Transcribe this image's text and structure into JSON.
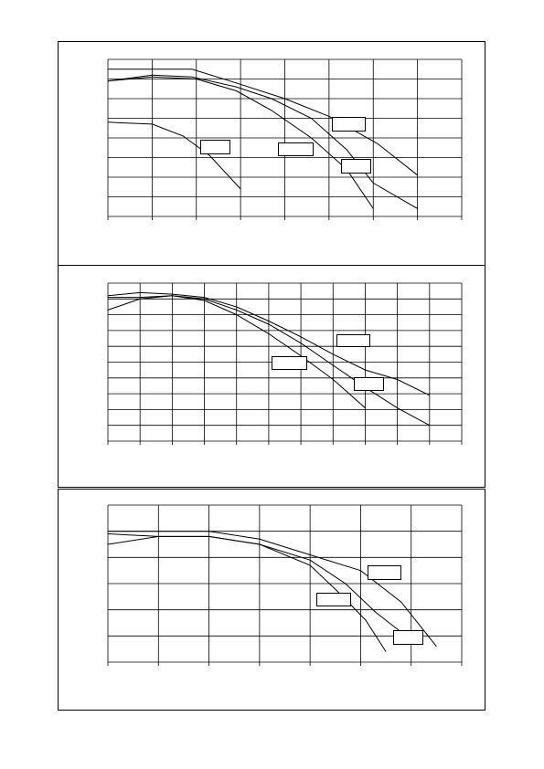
{
  "chart_data": [
    {
      "type": "line",
      "xlim": [
        0,
        8
      ],
      "ylim": [
        0,
        8
      ],
      "xticks": [
        0,
        1,
        2,
        3,
        4,
        5,
        6,
        7,
        8
      ],
      "yticks": [
        0,
        1,
        2,
        3,
        4,
        5,
        6,
        7,
        8
      ],
      "grid": true,
      "series": [
        {
          "color": "#000000",
          "x": [
            0,
            1,
            1.9,
            2.9,
            4,
            5,
            6.1,
            7
          ],
          "values": [
            7.5,
            7.5,
            7.5,
            6.8,
            6.0,
            5.1,
            3.7,
            2.1
          ]
        },
        {
          "color": "#000000",
          "x": [
            0,
            1,
            1.9,
            2.9,
            3.7,
            4.6,
            5.4,
            6.0,
            7.0
          ],
          "values": [
            6.9,
            7.2,
            7.1,
            6.6,
            6.0,
            5.0,
            3.4,
            1.7,
            0.4
          ]
        },
        {
          "color": "#000000",
          "x": [
            0,
            1,
            2,
            2.9,
            3.7,
            4.6,
            5.4,
            6.0
          ],
          "values": [
            6.9,
            7.1,
            7.0,
            6.4,
            5.4,
            4.0,
            2.4,
            0.4
          ]
        },
        {
          "color": "#000000",
          "x": [
            0,
            1,
            1.7,
            2.3,
            3.0
          ],
          "values": [
            4.8,
            4.7,
            4.1,
            3.1,
            1.4
          ]
        }
      ]
    },
    {
      "type": "line",
      "xlim": [
        0,
        11
      ],
      "ylim": [
        0,
        10
      ],
      "xticks": [
        0,
        1,
        2,
        3,
        4,
        5,
        6,
        7,
        8,
        9,
        10,
        11
      ],
      "yticks": [
        0,
        1,
        2,
        3,
        4,
        5,
        6,
        7,
        8,
        9,
        10
      ],
      "grid": true,
      "series": [
        {
          "color": "#000000",
          "x": [
            0,
            1,
            2,
            3,
            4,
            5,
            6,
            7,
            8,
            9,
            10
          ],
          "values": [
            9.2,
            9.4,
            9.3,
            9.1,
            8.5,
            7.6,
            6.6,
            5.5,
            4.5,
            3.9,
            2.9
          ]
        },
        {
          "color": "#000000",
          "x": [
            0,
            1,
            2,
            3,
            4,
            5,
            6,
            7,
            8,
            9,
            10
          ],
          "values": [
            9.1,
            9.1,
            9.2,
            9.0,
            8.3,
            7.4,
            6.2,
            4.8,
            3.4,
            2.1,
            1.0
          ]
        },
        {
          "color": "#000000",
          "x": [
            0,
            1,
            2,
            3,
            4,
            5,
            6,
            7,
            8
          ],
          "values": [
            8.3,
            9.0,
            9.2,
            8.9,
            8.0,
            6.8,
            5.4,
            3.9,
            2.1
          ]
        }
      ]
    },
    {
      "type": "line",
      "xlim": [
        0,
        7
      ],
      "ylim": [
        0,
        6
      ],
      "xticks": [
        0,
        1,
        2,
        3,
        4,
        5,
        6,
        7
      ],
      "yticks": [
        0,
        1,
        2,
        3,
        4,
        5,
        6
      ],
      "grid": true,
      "series": [
        {
          "color": "#000000",
          "x": [
            0,
            1,
            2,
            3,
            4,
            5,
            5.8,
            6.5
          ],
          "values": [
            5.0,
            5.0,
            5.0,
            4.7,
            4.1,
            3.5,
            2.3,
            0.6
          ]
        },
        {
          "color": "#000000",
          "x": [
            0,
            1,
            2,
            3,
            4,
            4.7,
            5.3,
            6.1
          ],
          "values": [
            4.9,
            4.8,
            4.8,
            4.5,
            3.9,
            3.0,
            1.9,
            0.7
          ]
        },
        {
          "color": "#000000",
          "x": [
            0,
            1,
            2,
            3,
            4,
            4.6,
            5.1,
            5.5
          ],
          "values": [
            4.5,
            4.8,
            4.8,
            4.5,
            3.7,
            2.6,
            1.6,
            0.4
          ]
        }
      ]
    }
  ]
}
